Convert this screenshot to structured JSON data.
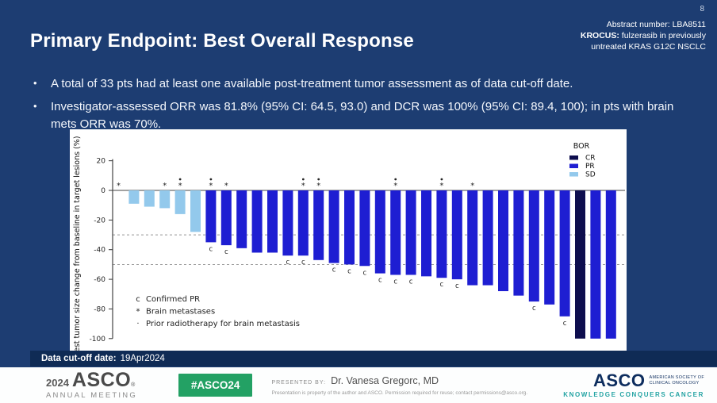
{
  "page_number": "8",
  "header": {
    "title": "Primary Endpoint: Best Overall Response",
    "abstract_line": "Abstract number: LBA8511",
    "krocus_label": "KROCUS:",
    "krocus_rest": " fulzerasib in previously",
    "krocus_line2": "untreated KRAS G12C NSCLC"
  },
  "bullets": [
    "A total of 33 pts had at least one available post-treatment tumor assessment as of data cut-off date.",
    "Investigator-assessed ORR was 81.8% (95% CI: 64.5, 93.0) and DCR was 100% (95% CI: 89.4, 100); in pts with brain mets ORR was 70%."
  ],
  "chart_data": {
    "type": "bar",
    "subtype": "waterfall",
    "ylabel": "Best tumor size change from baseline in target lesions (%)",
    "ylim": [
      -100,
      20
    ],
    "yticks": [
      20,
      0,
      -20,
      -40,
      -60,
      -80,
      -100
    ],
    "reference_lines": [
      -30,
      -50
    ],
    "grid": false,
    "legend": {
      "title": "BOR",
      "position": "upper right",
      "entries": [
        {
          "label": "CR",
          "color": "#0e0e4e"
        },
        {
          "label": "PR",
          "color": "#1e1ed2"
        },
        {
          "label": "SD",
          "color": "#93c9ec"
        }
      ]
    },
    "colors": {
      "CR": "#0e0e4e",
      "PR": "#1e1ed2",
      "SD": "#93c9ec"
    },
    "bars": [
      {
        "value": 0,
        "bor": "SD",
        "confirmed": false,
        "brain_mets": true,
        "prior_rt": false
      },
      {
        "value": -9,
        "bor": "SD",
        "confirmed": false,
        "brain_mets": false,
        "prior_rt": false
      },
      {
        "value": -11,
        "bor": "SD",
        "confirmed": false,
        "brain_mets": false,
        "prior_rt": false
      },
      {
        "value": -12,
        "bor": "SD",
        "confirmed": false,
        "brain_mets": true,
        "prior_rt": false
      },
      {
        "value": -16,
        "bor": "SD",
        "confirmed": false,
        "brain_mets": true,
        "prior_rt": true
      },
      {
        "value": -28,
        "bor": "SD",
        "confirmed": false,
        "brain_mets": false,
        "prior_rt": false
      },
      {
        "value": -35,
        "bor": "PR",
        "confirmed": true,
        "brain_mets": true,
        "prior_rt": true
      },
      {
        "value": -37,
        "bor": "PR",
        "confirmed": true,
        "brain_mets": true,
        "prior_rt": false
      },
      {
        "value": -39,
        "bor": "PR",
        "confirmed": false,
        "brain_mets": false,
        "prior_rt": false
      },
      {
        "value": -42,
        "bor": "PR",
        "confirmed": false,
        "brain_mets": false,
        "prior_rt": false
      },
      {
        "value": -42,
        "bor": "PR",
        "confirmed": false,
        "brain_mets": false,
        "prior_rt": false
      },
      {
        "value": -44,
        "bor": "PR",
        "confirmed": true,
        "brain_mets": false,
        "prior_rt": false
      },
      {
        "value": -44,
        "bor": "PR",
        "confirmed": true,
        "brain_mets": true,
        "prior_rt": true
      },
      {
        "value": -47,
        "bor": "PR",
        "confirmed": false,
        "brain_mets": true,
        "prior_rt": true
      },
      {
        "value": -49,
        "bor": "PR",
        "confirmed": true,
        "brain_mets": false,
        "prior_rt": false
      },
      {
        "value": -50,
        "bor": "PR",
        "confirmed": true,
        "brain_mets": false,
        "prior_rt": false
      },
      {
        "value": -51,
        "bor": "PR",
        "confirmed": true,
        "brain_mets": false,
        "prior_rt": false
      },
      {
        "value": -56,
        "bor": "PR",
        "confirmed": true,
        "brain_mets": false,
        "prior_rt": false
      },
      {
        "value": -57,
        "bor": "PR",
        "confirmed": true,
        "brain_mets": true,
        "prior_rt": true
      },
      {
        "value": -57,
        "bor": "PR",
        "confirmed": true,
        "brain_mets": false,
        "prior_rt": false
      },
      {
        "value": -58,
        "bor": "PR",
        "confirmed": false,
        "brain_mets": false,
        "prior_rt": false
      },
      {
        "value": -59,
        "bor": "PR",
        "confirmed": true,
        "brain_mets": true,
        "prior_rt": true
      },
      {
        "value": -60,
        "bor": "PR",
        "confirmed": true,
        "brain_mets": false,
        "prior_rt": false
      },
      {
        "value": -64,
        "bor": "PR",
        "confirmed": false,
        "brain_mets": true,
        "prior_rt": false
      },
      {
        "value": -64,
        "bor": "PR",
        "confirmed": false,
        "brain_mets": false,
        "prior_rt": false
      },
      {
        "value": -68,
        "bor": "PR",
        "confirmed": false,
        "brain_mets": false,
        "prior_rt": false
      },
      {
        "value": -71,
        "bor": "PR",
        "confirmed": false,
        "brain_mets": false,
        "prior_rt": false
      },
      {
        "value": -75,
        "bor": "PR",
        "confirmed": true,
        "brain_mets": false,
        "prior_rt": false
      },
      {
        "value": -77,
        "bor": "PR",
        "confirmed": false,
        "brain_mets": false,
        "prior_rt": false
      },
      {
        "value": -85,
        "bor": "PR",
        "confirmed": true,
        "brain_mets": false,
        "prior_rt": false
      },
      {
        "value": -100,
        "bor": "CR",
        "confirmed": false,
        "brain_mets": false,
        "prior_rt": false
      },
      {
        "value": -100,
        "bor": "PR",
        "confirmed": false,
        "brain_mets": false,
        "prior_rt": false
      },
      {
        "value": -100,
        "bor": "PR",
        "confirmed": false,
        "brain_mets": false,
        "prior_rt": false
      }
    ],
    "annotations": [
      {
        "symbol": "c",
        "label": "Confirmed PR"
      },
      {
        "symbol": "*",
        "label": "Brain metastases"
      },
      {
        "symbol": "·",
        "label": "Prior radiotherapy for brain metastasis"
      }
    ]
  },
  "cutoff": {
    "label": "Data cut-off date:",
    "value": "19Apr2024"
  },
  "footer": {
    "year": "2024",
    "asco": "ASCO",
    "reg": "®",
    "annual_meeting": "ANNUAL MEETING",
    "hashtag": "#ASCO24",
    "presented_by": "PRESENTED BY:",
    "presenter": "Dr. Vanesa Gregorc, MD",
    "disclaimer": "Presentation is property of the author and ASCO. Permission required for reuse; contact permissions@asco.org.",
    "asco_right": "ASCO",
    "asco_right_sub1": "AMERICAN SOCIETY OF",
    "asco_right_sub2": "CLINICAL ONCOLOGY",
    "tagline": "KNOWLEDGE CONQUERS CANCER"
  }
}
